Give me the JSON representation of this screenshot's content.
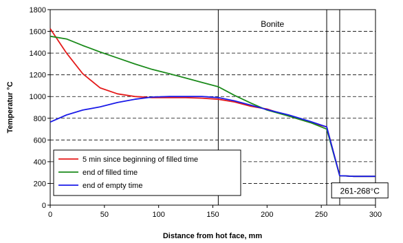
{
  "chart_data": {
    "type": "line",
    "xlabel": "Distance from hot face, mm",
    "ylabel": "Temperatur °C",
    "xlim": [
      0,
      300
    ],
    "ylim": [
      0,
      1800
    ],
    "xticks": [
      0,
      50,
      100,
      150,
      200,
      250,
      300
    ],
    "yticks": [
      0,
      200,
      400,
      600,
      800,
      1000,
      1200,
      1400,
      1600,
      1800
    ],
    "grid": "horizontal dashed",
    "legend_position": "bottom-left",
    "layer_boundaries_mm": [
      155,
      255,
      267
    ],
    "annotations": [
      {
        "text": "Bonite",
        "x": 205,
        "y": 1640
      },
      {
        "text": "261-268°C",
        "x": 283,
        "y": 110
      }
    ],
    "series": [
      {
        "name": "5 min since beginning of filled time",
        "color": "#e41a1a",
        "x": [
          0,
          15,
          30,
          46,
          62,
          78,
          94,
          110,
          125,
          140,
          155,
          170,
          185,
          200,
          220,
          240,
          255,
          267,
          270,
          280,
          300
        ],
        "y": [
          1625,
          1400,
          1210,
          1080,
          1025,
          1000,
          990,
          990,
          990,
          985,
          975,
          950,
          910,
          885,
          820,
          760,
          720,
          270,
          270,
          265,
          265
        ]
      },
      {
        "name": "end of filled time",
        "color": "#1a8a1a",
        "x": [
          0,
          15,
          30,
          46,
          62,
          78,
          94,
          110,
          125,
          140,
          155,
          170,
          185,
          200,
          220,
          240,
          255,
          267,
          270,
          280,
          300
        ],
        "y": [
          1555,
          1530,
          1470,
          1410,
          1355,
          1300,
          1250,
          1210,
          1170,
          1130,
          1090,
          1010,
          940,
          875,
          820,
          760,
          700,
          270,
          270,
          265,
          265
        ]
      },
      {
        "name": "end of empty time",
        "color": "#1a1ae8",
        "x": [
          0,
          15,
          30,
          46,
          62,
          78,
          94,
          110,
          125,
          140,
          155,
          170,
          185,
          200,
          220,
          240,
          255,
          267,
          270,
          280,
          300
        ],
        "y": [
          765,
          830,
          875,
          905,
          945,
          975,
          995,
          1000,
          1000,
          1000,
          990,
          960,
          920,
          880,
          830,
          770,
          720,
          270,
          270,
          265,
          265
        ]
      }
    ]
  }
}
